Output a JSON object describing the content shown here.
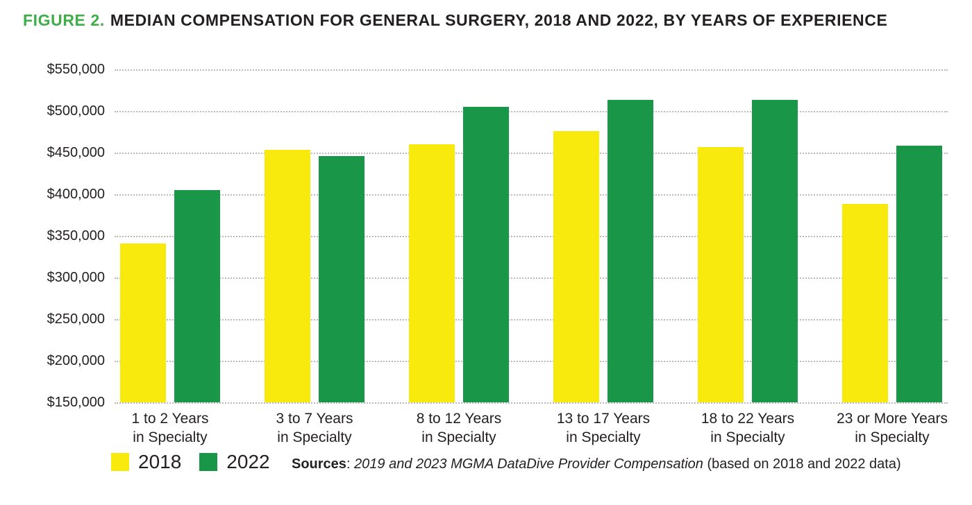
{
  "title": {
    "prefix": "FIGURE 2.",
    "text": "MEDIAN COMPENSATION FOR GENERAL SURGERY, 2018 AND 2022, BY YEARS OF EXPERIENCE"
  },
  "colors": {
    "title_accent": "#3fae49",
    "text": "#231f20",
    "gridline": "#b9b9b9",
    "series_2018": "#f7ea0c",
    "series_2022": "#1a9649"
  },
  "legend": [
    {
      "label": "2018",
      "color": "#f7ea0c"
    },
    {
      "label": "2022",
      "color": "#1a9649"
    }
  ],
  "sources": {
    "label": "Sources",
    "colon": ": ",
    "italic": "2019 and 2023 MGMA DataDive Provider Compensation",
    "suffix": " (based on 2018 and 2022 data)"
  },
  "chart_data": {
    "type": "bar",
    "title": "FIGURE 2. MEDIAN COMPENSATION FOR GENERAL SURGERY, 2018 AND 2022, BY YEARS OF EXPERIENCE",
    "categories": [
      "1 to 2 Years\nin Specialty",
      "3 to 7 Years\nin Specialty",
      "8 to 12 Years\nin Specialty",
      "13 to 17 Years\nin Specialty",
      "18 to 22 Years\nin Specialty",
      "23 or More Years\nin Specialty"
    ],
    "series": [
      {
        "name": "2018",
        "color": "#f7ea0c",
        "values": [
          341000,
          453000,
          460000,
          476000,
          457000,
          388000
        ]
      },
      {
        "name": "2022",
        "color": "#1a9649",
        "values": [
          405000,
          446000,
          505000,
          513000,
          513000,
          458000
        ]
      }
    ],
    "y_axis": {
      "min": 150000,
      "max": 550000,
      "step": 50000,
      "tick_labels": [
        "$550,000",
        "$500,000",
        "$450,000",
        "$400,000",
        "$350,000",
        "$300,000",
        "$250,000",
        "$200,000",
        "$150,000"
      ]
    },
    "ylim": [
      150000,
      550000
    ],
    "grid": "horizontal-dotted",
    "legend_position": "bottom-left",
    "xlabel": "",
    "ylabel": ""
  }
}
